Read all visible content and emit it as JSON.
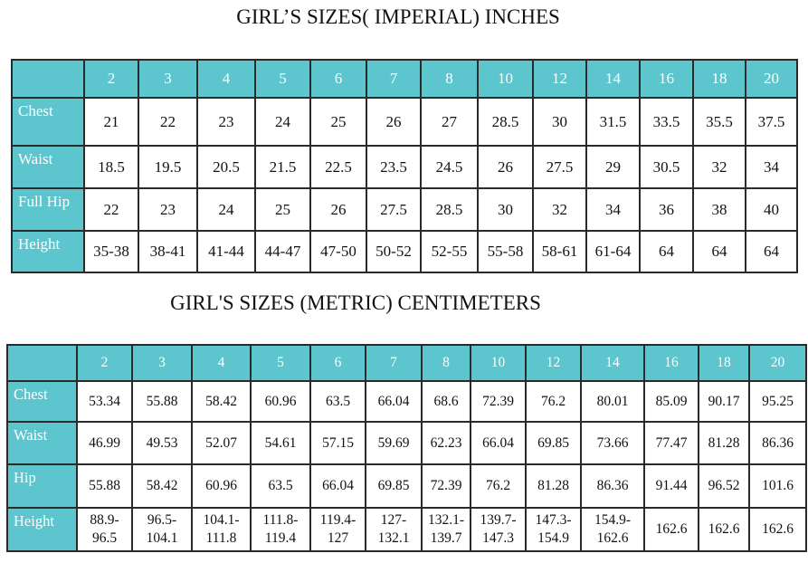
{
  "imperial": {
    "title": "GIRL’S  SIZES( IMPERIAL) INCHES",
    "header": [
      "2",
      "3",
      "4",
      "5",
      "6",
      "7",
      "8",
      "10",
      "12",
      "14",
      "16",
      "18",
      "20"
    ],
    "rows": [
      {
        "label": "Chest",
        "values": [
          "21",
          "22",
          "23",
          "24",
          "25",
          "26",
          "27",
          "28.5",
          "30",
          "31.5",
          "33.5",
          "35.5",
          "37.5"
        ]
      },
      {
        "label": "Waist",
        "values": [
          "18.5",
          "19.5",
          "20.5",
          "21.5",
          "22.5",
          "23.5",
          "24.5",
          "26",
          "27.5",
          "29",
          "30.5",
          "32",
          "34"
        ]
      },
      {
        "label": "Full Hip",
        "values": [
          "22",
          "23",
          "24",
          "25",
          "26",
          "27.5",
          "28.5",
          "30",
          "32",
          "34",
          "36",
          "38",
          "40"
        ]
      },
      {
        "label": "Height",
        "values": [
          "35-38",
          "38-41",
          "41-44",
          "44-47",
          "47-50",
          "50-52",
          "52-55",
          "55-58",
          "58-61",
          "61-64",
          "64",
          "64",
          "64"
        ]
      }
    ]
  },
  "metric": {
    "title": "GIRL'S SIZES (METRIC) CENTIMETERS",
    "header": [
      "2",
      "3",
      "4",
      "5",
      "6",
      "7",
      "8",
      "10",
      "12",
      "14",
      "16",
      "18",
      "20"
    ],
    "rows": [
      {
        "label": "Chest",
        "values": [
          "53.34",
          "55.88",
          "58.42",
          "60.96",
          "63.5",
          "66.04",
          "68.6",
          "72.39",
          "76.2",
          "80.01",
          "85.09",
          "90.17",
          "95.25"
        ]
      },
      {
        "label": "Waist",
        "values": [
          "46.99",
          "49.53",
          "52.07",
          "54.61",
          "57.15",
          "59.69",
          "62.23",
          "66.04",
          "69.85",
          "73.66",
          "77.47",
          "81.28",
          "86.36"
        ]
      },
      {
        "label": "Hip",
        "values": [
          "55.88",
          "58.42",
          "60.96",
          "63.5",
          "66.04",
          "69.85",
          "72.39",
          "76.2",
          "81.28",
          "86.36",
          "91.44",
          "96.52",
          "101.6"
        ]
      },
      {
        "label": "Height",
        "values": [
          "88.9-\n96.5",
          "96.5-\n104.1",
          "104.1-\n111.8",
          "111.8-\n119.4",
          "119.4-\n127",
          "127-\n132.1",
          "132.1-\n139.7",
          "139.7-\n147.3",
          "147.3-\n154.9",
          "154.9-\n162.6",
          "162.6",
          "162.6",
          "162.6"
        ]
      }
    ]
  }
}
